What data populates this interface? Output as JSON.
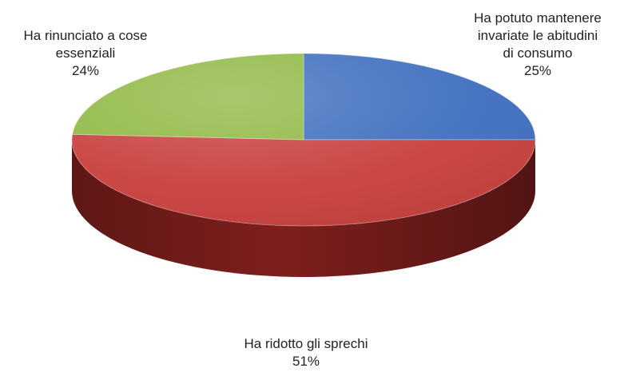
{
  "chart_data": {
    "type": "pie",
    "title": "",
    "slices": [
      {
        "label_lines": [
          "Ha potuto mantenere",
          "invariate le abitudini",
          "di consumo"
        ],
        "percent_label": "25%",
        "value": 25,
        "color": "#3f6fbf",
        "side_color": "#23457f"
      },
      {
        "label_lines": [
          "Ha ridotto gli sprechi"
        ],
        "percent_label": "51%",
        "value": 51,
        "color": "#c8403d",
        "side_color": "#7e1f1d"
      },
      {
        "label_lines": [
          "Ha rinunciato a cose",
          "essenziali"
        ],
        "percent_label": "24%",
        "value": 24,
        "color": "#8fb843",
        "side_color": "#5c7a28"
      }
    ],
    "legend": "none",
    "style": "3d"
  }
}
